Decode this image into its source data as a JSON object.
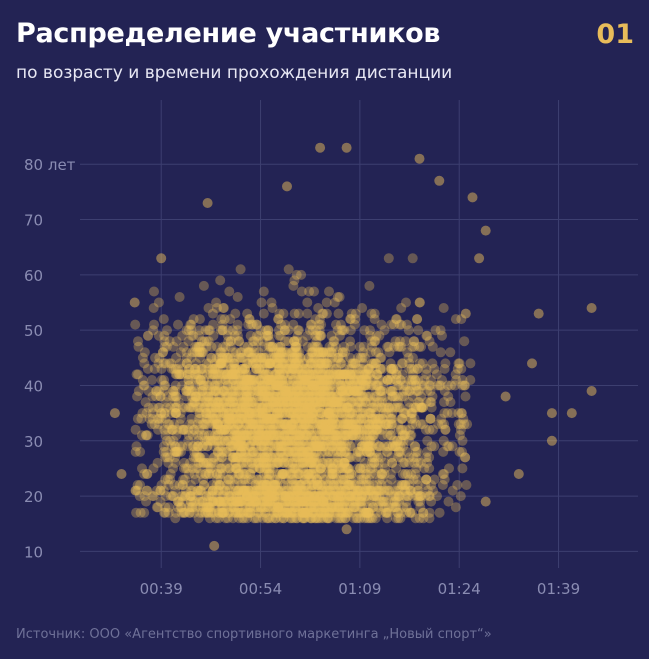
{
  "header": {
    "title": "Распределение участников",
    "subtitle": "по возрасту и времени прохождения дистанции",
    "number": "01"
  },
  "footer": {
    "source": "Источник: ООО «Агентство спортивного маркетинга „Новый спорт“»"
  },
  "colors": {
    "background": "#232354",
    "dots": "#e8bc5a",
    "accent": "#e8bc5a",
    "grid": "#3d3f70",
    "tick_text": "#8a8cb2"
  },
  "chart_data": {
    "type": "scatter",
    "title": "Распределение участников",
    "subtitle": "по возрасту и времени прохождения дистанции",
    "xlabel": "",
    "ylabel": "",
    "grid": true,
    "x_unit": "h:mm (время прохождения)",
    "y_unit": "лет (возраст)",
    "xlim": [
      "0:29",
      "1:51"
    ],
    "ylim": [
      7,
      88
    ],
    "x_ticks": [
      {
        "value": "0:39",
        "label": "00:39"
      },
      {
        "value": "0:54",
        "label": "00:54"
      },
      {
        "value": "1:09",
        "label": "01:09"
      },
      {
        "value": "1:24",
        "label": "01:24"
      },
      {
        "value": "1:39",
        "label": "01:39"
      }
    ],
    "y_ticks": [
      {
        "value": 10,
        "label": "10"
      },
      {
        "value": 20,
        "label": "20"
      },
      {
        "value": 30,
        "label": "30"
      },
      {
        "value": 40,
        "label": "40"
      },
      {
        "value": 50,
        "label": "50"
      },
      {
        "value": 60,
        "label": "60"
      },
      {
        "value": 70,
        "label": "70"
      },
      {
        "value": 80,
        "label": "80 лет"
      }
    ],
    "dense_region": {
      "x_center": "0:59",
      "x_range": [
        "0:35",
        "1:20"
      ],
      "y_range": [
        16,
        60
      ],
      "y_peak": 35
    },
    "points": [
      {
        "x": "1:44",
        "y": 54
      },
      {
        "x": "1:44",
        "y": 39
      },
      {
        "x": "1:38",
        "y": 35
      },
      {
        "x": "1:41",
        "y": 35
      },
      {
        "x": "1:38",
        "y": 30
      },
      {
        "x": "1:36",
        "y": 53
      },
      {
        "x": "1:35",
        "y": 44
      },
      {
        "x": "1:31",
        "y": 38
      },
      {
        "x": "1:33",
        "y": 24
      },
      {
        "x": "1:28",
        "y": 19
      },
      {
        "x": "1:28",
        "y": 68
      },
      {
        "x": "1:26",
        "y": 74
      },
      {
        "x": "1:21",
        "y": 77
      },
      {
        "x": "1:07",
        "y": 83
      },
      {
        "x": "1:03",
        "y": 83
      },
      {
        "x": "1:18",
        "y": 81
      },
      {
        "x": "0:58",
        "y": 76
      },
      {
        "x": "0:46",
        "y": 73
      },
      {
        "x": "0:47",
        "y": 11
      },
      {
        "x": "0:32",
        "y": 35
      },
      {
        "x": "0:33",
        "y": 24
      },
      {
        "x": "0:39",
        "y": 63
      },
      {
        "x": "0:35",
        "y": 55
      },
      {
        "x": "0:37",
        "y": 49
      },
      {
        "x": "1:07",
        "y": 14
      },
      {
        "x": "1:27",
        "y": 63
      },
      {
        "x": "1:25",
        "y": 53
      }
    ]
  }
}
